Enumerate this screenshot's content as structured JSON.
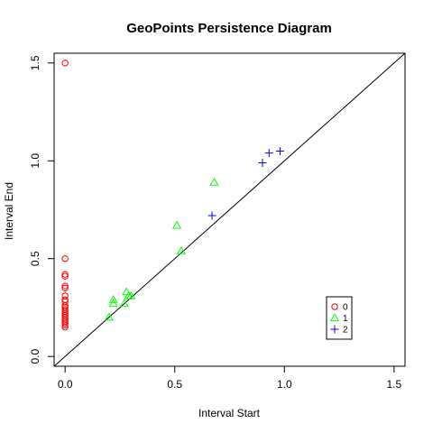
{
  "chart_data": {
    "type": "scatter",
    "title": "GeoPoints Persistence Diagram",
    "xlabel": "Interval Start",
    "ylabel": "Interval End",
    "xlim": [
      -0.05,
      1.55
    ],
    "ylim": [
      -0.05,
      1.55
    ],
    "x_ticks": [
      0.0,
      0.5,
      1.0,
      1.5
    ],
    "y_ticks": [
      0.0,
      0.5,
      1.0,
      1.5
    ],
    "x_tick_labels": [
      "0.0",
      "0.5",
      "1.0",
      "1.5"
    ],
    "y_tick_labels": [
      "0.0",
      "0.5",
      "1.0",
      "1.5"
    ],
    "diagonal": true,
    "grid": false,
    "legend_position": "bottom-right",
    "series": [
      {
        "name": "0",
        "marker": "circle",
        "color": "#ff0000",
        "points": [
          [
            0,
            1.5
          ],
          [
            0,
            0.5
          ],
          [
            0,
            0.42
          ],
          [
            0,
            0.41
          ],
          [
            0,
            0.36
          ],
          [
            0,
            0.35
          ],
          [
            0,
            0.31
          ],
          [
            0,
            0.29
          ],
          [
            0,
            0.28
          ],
          [
            0,
            0.26
          ],
          [
            0,
            0.25
          ],
          [
            0,
            0.24
          ],
          [
            0,
            0.23
          ],
          [
            0,
            0.22
          ],
          [
            0,
            0.21
          ],
          [
            0,
            0.2
          ],
          [
            0,
            0.19
          ],
          [
            0,
            0.18
          ],
          [
            0,
            0.17
          ],
          [
            0,
            0.16
          ],
          [
            0,
            0.15
          ]
        ]
      },
      {
        "name": "1",
        "marker": "triangle",
        "color": "#00ff00",
        "points": [
          [
            0.2,
            0.2
          ],
          [
            0.22,
            0.29
          ],
          [
            0.22,
            0.27
          ],
          [
            0.27,
            0.27
          ],
          [
            0.28,
            0.33
          ],
          [
            0.29,
            0.31
          ],
          [
            0.3,
            0.31
          ],
          [
            0.51,
            0.67
          ],
          [
            0.53,
            0.54
          ],
          [
            0.68,
            0.89
          ]
        ]
      },
      {
        "name": "2",
        "marker": "plus",
        "color": "#0000ff",
        "points": [
          [
            0.67,
            0.72
          ],
          [
            0.9,
            0.99
          ],
          [
            0.93,
            1.04
          ],
          [
            0.98,
            1.05
          ]
        ]
      }
    ]
  }
}
